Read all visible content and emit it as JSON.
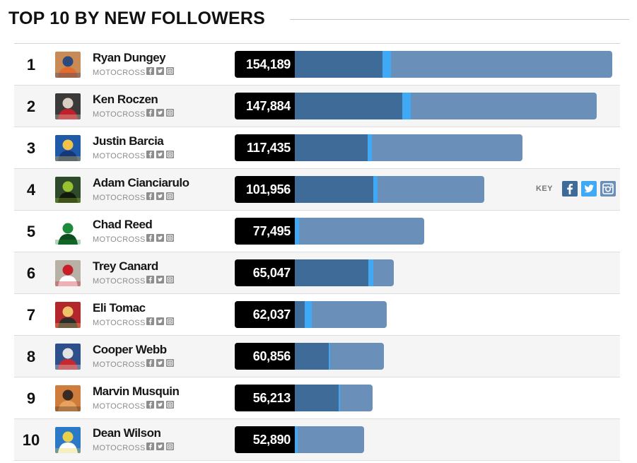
{
  "header": {
    "title": "TOP 10 BY NEW FOLLOWERS"
  },
  "key": {
    "label": "KEY",
    "colors": {
      "facebook": "#3e6b98",
      "twitter": "#3fa9f5",
      "instagram": "#6a90b9"
    }
  },
  "chart_data": {
    "type": "bar",
    "title": "TOP 10 BY NEW FOLLOWERS",
    "xlabel": "",
    "ylabel": "",
    "xlim": [
      0,
      154189
    ],
    "categories": [
      "Ryan Dungey",
      "Ken Roczen",
      "Justin Barcia",
      "Adam Cianciarulo",
      "Chad Reed",
      "Trey Canard",
      "Eli Tomac",
      "Cooper Webb",
      "Marvin Musquin",
      "Dean Wilson"
    ],
    "totals": [
      154189,
      147884,
      117435,
      101956,
      77495,
      65047,
      62037,
      60856,
      56213,
      52890
    ],
    "series": [
      {
        "name": "facebook",
        "values": [
          35900,
          43800,
          29700,
          32000,
          0,
          29900,
          4100,
          13900,
          17800,
          0
        ]
      },
      {
        "name": "twitter",
        "values": [
          3500,
          3600,
          1700,
          1700,
          1800,
          2100,
          3000,
          600,
          600,
          700
        ]
      },
      {
        "name": "instagram",
        "values": [
          114789,
          100484,
          86035,
          68256,
          75695,
          33047,
          54937,
          46356,
          37813,
          52190
        ]
      }
    ]
  },
  "riders": [
    {
      "rank": "1",
      "name": "Ryan Dungey",
      "category": "MOTOCROSS",
      "value": "154,189",
      "avatar": {
        "bg": "#c98a56",
        "fg": "#2a4b7c",
        "accent": "#e36c2d"
      }
    },
    {
      "rank": "2",
      "name": "Ken Roczen",
      "category": "MOTOCROSS",
      "value": "147,884",
      "avatar": {
        "bg": "#3a3a3a",
        "fg": "#d9cfc2",
        "accent": "#c0202a"
      }
    },
    {
      "rank": "3",
      "name": "Justin Barcia",
      "category": "MOTOCROSS",
      "value": "117,435",
      "avatar": {
        "bg": "#1e5aa8",
        "fg": "#f0c24a",
        "accent": "#15387a"
      }
    },
    {
      "rank": "4",
      "name": "Adam Cianciarulo",
      "category": "MOTOCROSS",
      "value": "101,956",
      "avatar": {
        "bg": "#2f4a2a",
        "fg": "#98c232",
        "accent": "#0f1a0c"
      }
    },
    {
      "rank": "5",
      "name": "Chad Reed",
      "category": "MOTOCROSS",
      "value": "77,495",
      "avatar": {
        "bg": "#ffffff",
        "fg": "#1f8b3a",
        "accent": "#0c4d1e"
      }
    },
    {
      "rank": "6",
      "name": "Trey Canard",
      "category": "MOTOCROSS",
      "value": "65,047",
      "avatar": {
        "bg": "#b7b1a6",
        "fg": "#c81e2a",
        "accent": "#ffffff"
      }
    },
    {
      "rank": "7",
      "name": "Eli Tomac",
      "category": "MOTOCROSS",
      "value": "62,037",
      "avatar": {
        "bg": "#b3262c",
        "fg": "#f1c06a",
        "accent": "#2c2c2c"
      }
    },
    {
      "rank": "8",
      "name": "Cooper Webb",
      "category": "MOTOCROSS",
      "value": "60,856",
      "avatar": {
        "bg": "#2f4f8c",
        "fg": "#e2e2e2",
        "accent": "#c42a30"
      }
    },
    {
      "rank": "9",
      "name": "Marvin Musquin",
      "category": "MOTOCROSS",
      "value": "56,213",
      "avatar": {
        "bg": "#cf7d3c",
        "fg": "#3b2a22",
        "accent": "#e9a25b"
      }
    },
    {
      "rank": "10",
      "name": "Dean Wilson",
      "category": "MOTOCROSS",
      "value": "52,890",
      "avatar": {
        "bg": "#2c79c8",
        "fg": "#e8d24a",
        "accent": "#ffffff"
      }
    }
  ]
}
